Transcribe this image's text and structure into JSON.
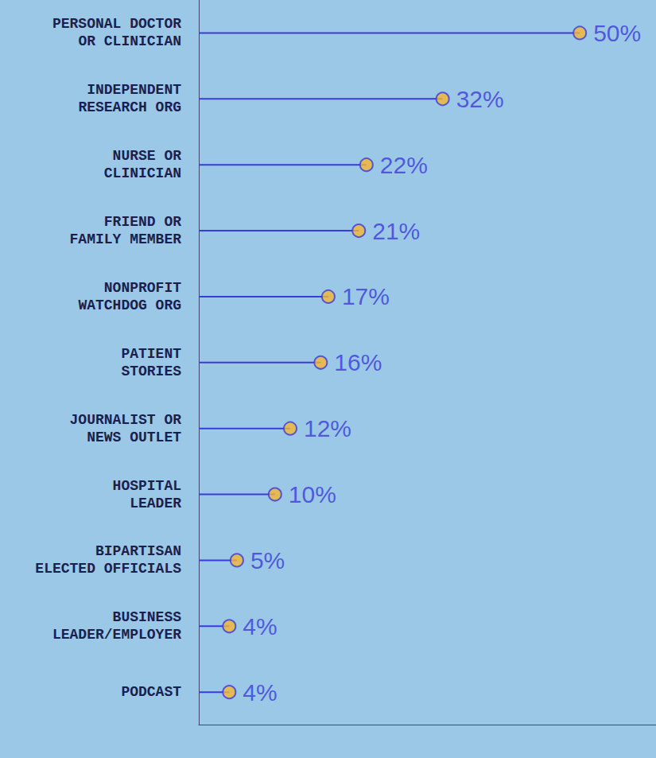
{
  "chart_data": {
    "type": "bar",
    "orientation": "horizontal",
    "marker": "circle",
    "categories": [
      "PERSONAL DOCTOR\nOR CLINICIAN",
      "INDEPENDENT\nRESEARCH ORG",
      "NURSE OR\nCLINICIAN",
      "FRIEND OR\nFAMILY MEMBER",
      "NONPROFIT\nWATCHDOG ORG",
      "PATIENT\nSTORIES",
      "JOURNALIST OR\nNEWS OUTLET",
      "HOSPITAL\nLEADER",
      "BIPARTISAN\nELECTED OFFICIALS",
      "BUSINESS\nLEADER/EMPLOYER",
      "PODCAST"
    ],
    "values": [
      50,
      32,
      22,
      21,
      17,
      16,
      12,
      10,
      5,
      4,
      4
    ],
    "value_labels": [
      "50%",
      "32%",
      "22%",
      "21%",
      "17%",
      "16%",
      "12%",
      "10%",
      "5%",
      "4%",
      "4%"
    ],
    "xlim": [
      0,
      60
    ],
    "color": "#3b3bdb",
    "data_labels": true,
    "tick_labels": "y",
    "grid": false
  }
}
